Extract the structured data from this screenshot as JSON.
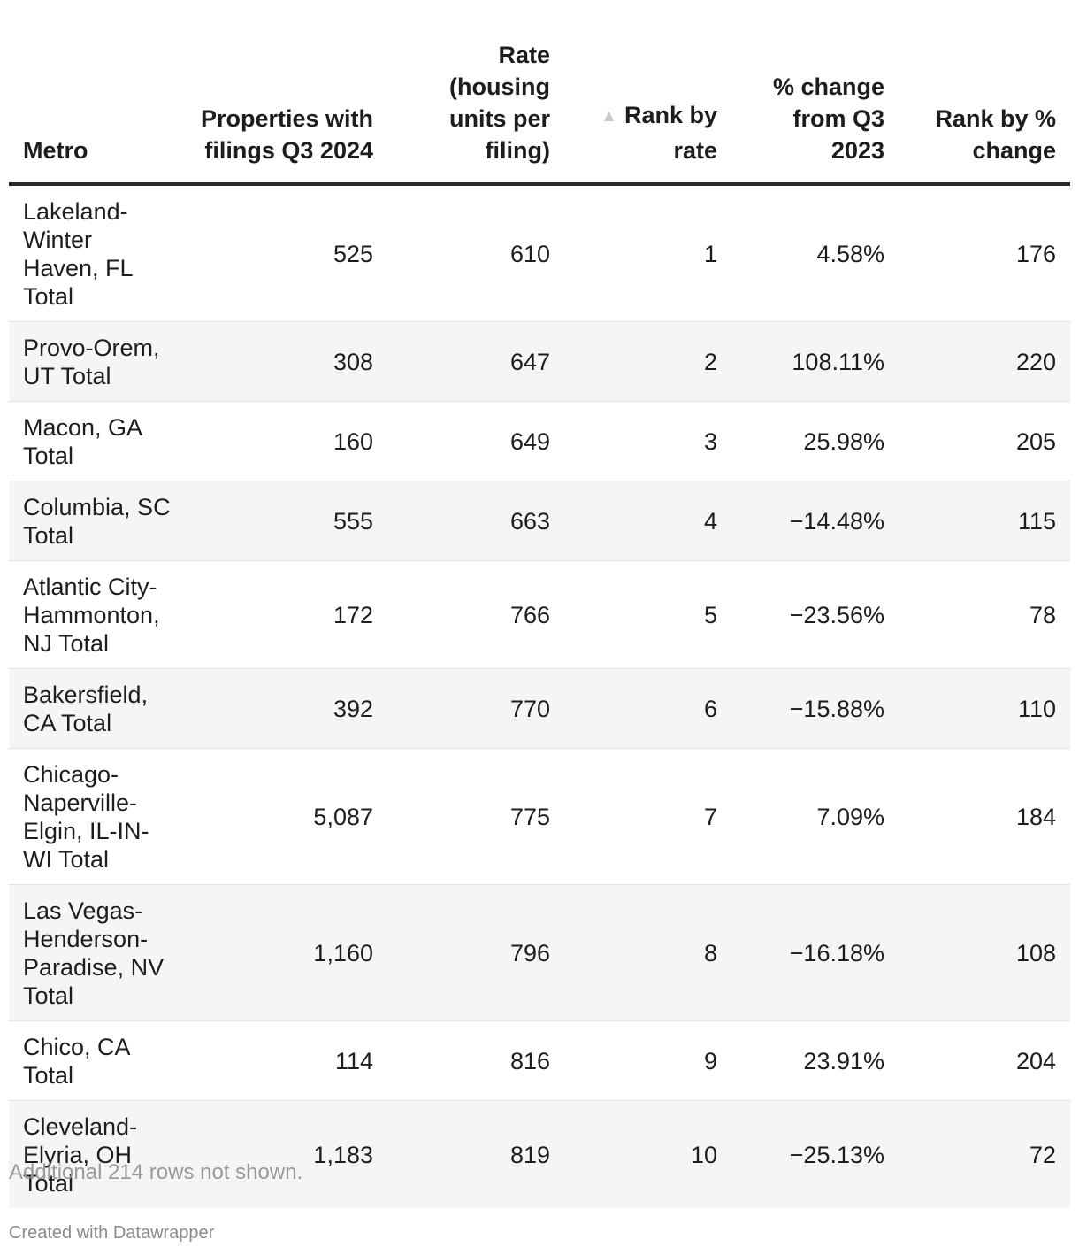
{
  "chart_data": {
    "type": "table",
    "columns": [
      {
        "label": "Metro",
        "align": "left",
        "sorted": false
      },
      {
        "label": "Properties with filings Q3 2024",
        "align": "right",
        "sorted": false
      },
      {
        "label": "Rate (housing units per filing)",
        "align": "right",
        "sorted": false
      },
      {
        "label": "Rank by rate",
        "align": "right",
        "sorted": "ascending"
      },
      {
        "label": "% change from Q3 2023",
        "align": "right",
        "sorted": false
      },
      {
        "label": "Rank by % change",
        "align": "right",
        "sorted": false
      }
    ],
    "rows": [
      [
        "Lakeland-Winter Haven, FL Total",
        "525",
        "610",
        "1",
        "4.58%",
        "176"
      ],
      [
        "Provo-Orem, UT Total",
        "308",
        "647",
        "2",
        "108.11%",
        "220"
      ],
      [
        "Macon, GA Total",
        "160",
        "649",
        "3",
        "25.98%",
        "205"
      ],
      [
        "Columbia, SC Total",
        "555",
        "663",
        "4",
        "−14.48%",
        "115"
      ],
      [
        "Atlantic City-Hammonton, NJ Total",
        "172",
        "766",
        "5",
        "−23.56%",
        "78"
      ],
      [
        "Bakersfield, CA Total",
        "392",
        "770",
        "6",
        "−15.88%",
        "110"
      ],
      [
        "Chicago-Naperville-Elgin, IL-IN-WI Total",
        "5,087",
        "775",
        "7",
        "7.09%",
        "184"
      ],
      [
        "Las Vegas-Henderson-Paradise, NV Total",
        "1,160",
        "796",
        "8",
        "−16.18%",
        "108"
      ],
      [
        "Chico, CA Total",
        "114",
        "816",
        "9",
        "23.91%",
        "204"
      ],
      [
        "Cleveland-Elyria, OH Total",
        "1,183",
        "819",
        "10",
        "−25.13%",
        "72"
      ]
    ],
    "sort_arrow_icon": "triangle-up-icon",
    "colors": {
      "header_rule": "#2a2a2a",
      "zebra": "#f5f5f5",
      "note_text": "#9a9a9a"
    }
  },
  "footer": {
    "note": "Additional 214 rows not shown.",
    "credit": "Created with Datawrapper"
  }
}
